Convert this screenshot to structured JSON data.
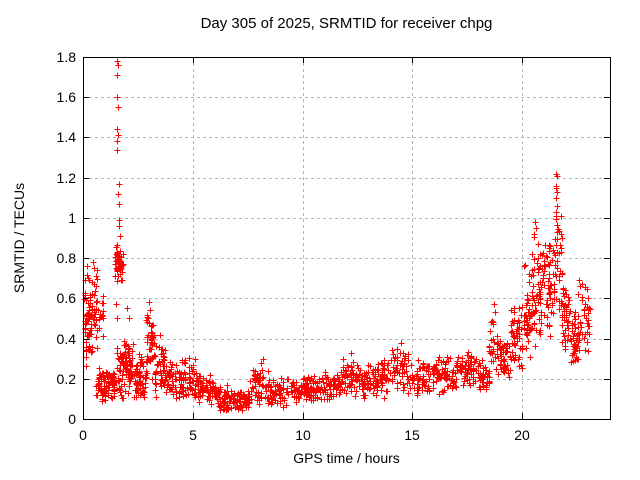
{
  "chart_data": {
    "type": "scatter",
    "title": "Day 305 of 2025, SRMTID for receiver chpg",
    "xlabel": "GPS time / hours",
    "ylabel": "SRMTID / TECUs",
    "xlim": [
      0,
      24
    ],
    "ylim": [
      0,
      1.8
    ],
    "xticks": {
      "values": [
        0,
        5,
        10,
        15,
        20
      ],
      "labels": [
        "0",
        "5",
        "10",
        "15",
        "20"
      ]
    },
    "yticks": {
      "values": [
        0,
        0.2,
        0.4,
        0.6,
        0.8,
        1.0,
        1.2,
        1.4,
        1.6,
        1.8
      ],
      "labels": [
        "0",
        "0.2",
        "0.4",
        "0.6",
        "0.8",
        "1",
        "1.2",
        "1.4",
        "1.6",
        "1.8"
      ]
    },
    "grid": true,
    "legend_position": "none",
    "marker": {
      "shape": "plus",
      "color": "#ff0000",
      "size": 7
    },
    "axis_color": "#000000",
    "grid_color": "#b5b5b5",
    "series": [
      {
        "name": "SRMTID",
        "clusters": [
          [
            0.05,
            0.35,
            0.24,
            0.77,
            55
          ],
          [
            0.35,
            0.65,
            0.28,
            0.79,
            28
          ],
          [
            0.5,
            0.95,
            0.4,
            0.64,
            20
          ],
          [
            0.6,
            1.45,
            0.08,
            0.27,
            85
          ],
          [
            1.45,
            1.82,
            0.68,
            0.88,
            45
          ],
          [
            1.5,
            1.95,
            0.05,
            0.45,
            38
          ],
          [
            1.82,
            2.3,
            0.1,
            0.42,
            50
          ],
          [
            2.3,
            2.85,
            0.08,
            0.33,
            55
          ],
          [
            2.85,
            3.25,
            0.12,
            0.55,
            42
          ],
          [
            3.25,
            3.8,
            0.1,
            0.4,
            48
          ],
          [
            3.8,
            4.5,
            0.08,
            0.3,
            52
          ],
          [
            4.5,
            5.2,
            0.08,
            0.31,
            52
          ],
          [
            5.2,
            6.0,
            0.06,
            0.23,
            58
          ],
          [
            6.0,
            6.6,
            0.04,
            0.19,
            52
          ],
          [
            6.6,
            7.6,
            0.03,
            0.15,
            68
          ],
          [
            7.6,
            8.45,
            0.06,
            0.28,
            58
          ],
          [
            8.45,
            9.3,
            0.06,
            0.21,
            52
          ],
          [
            9.3,
            10.2,
            0.07,
            0.22,
            52
          ],
          [
            10.2,
            11.0,
            0.08,
            0.24,
            52
          ],
          [
            11.0,
            11.8,
            0.06,
            0.26,
            52
          ],
          [
            11.8,
            12.5,
            0.1,
            0.33,
            48
          ],
          [
            12.5,
            13.3,
            0.1,
            0.28,
            52
          ],
          [
            13.3,
            14.0,
            0.1,
            0.31,
            48
          ],
          [
            14.0,
            14.8,
            0.12,
            0.38,
            48
          ],
          [
            14.8,
            15.6,
            0.1,
            0.3,
            48
          ],
          [
            15.6,
            16.4,
            0.12,
            0.32,
            48
          ],
          [
            16.4,
            17.2,
            0.13,
            0.33,
            52
          ],
          [
            17.2,
            18.0,
            0.14,
            0.35,
            52
          ],
          [
            18.0,
            18.5,
            0.1,
            0.3,
            38
          ],
          [
            18.5,
            18.9,
            0.16,
            0.55,
            26
          ],
          [
            18.9,
            19.5,
            0.18,
            0.44,
            42
          ],
          [
            19.5,
            20.0,
            0.22,
            0.58,
            48
          ],
          [
            20.0,
            20.5,
            0.28,
            0.78,
            52
          ],
          [
            20.5,
            21.0,
            0.34,
            0.98,
            52
          ],
          [
            21.0,
            21.5,
            0.4,
            1.02,
            48
          ],
          [
            21.5,
            21.8,
            0.5,
            1.17,
            32
          ],
          [
            21.8,
            22.2,
            0.3,
            0.72,
            42
          ],
          [
            22.2,
            22.65,
            0.23,
            0.55,
            42
          ],
          [
            22.65,
            23.1,
            0.3,
            0.7,
            28
          ]
        ],
        "outliers": [
          [
            0.45,
            0.78
          ],
          [
            0.5,
            0.75
          ],
          [
            1.55,
            1.78
          ],
          [
            1.58,
            1.76
          ],
          [
            1.55,
            1.71
          ],
          [
            1.56,
            1.6
          ],
          [
            1.6,
            1.55
          ],
          [
            1.55,
            1.44
          ],
          [
            1.58,
            1.41
          ],
          [
            1.53,
            1.38
          ],
          [
            1.57,
            1.34
          ],
          [
            1.62,
            1.17
          ],
          [
            1.6,
            1.12
          ],
          [
            1.64,
            1.07
          ],
          [
            1.66,
            0.99
          ],
          [
            1.62,
            0.96
          ],
          [
            1.68,
            0.91
          ],
          [
            1.52,
            0.57
          ],
          [
            1.56,
            0.5
          ],
          [
            2.0,
            0.55
          ],
          [
            2.1,
            0.5
          ],
          [
            3.0,
            0.58
          ],
          [
            3.05,
            0.54
          ],
          [
            2.95,
            0.5
          ],
          [
            3.1,
            0.46
          ],
          [
            3.5,
            0.42
          ],
          [
            5.1,
            0.3
          ],
          [
            8.1,
            0.28
          ],
          [
            8.2,
            0.3
          ],
          [
            12.2,
            0.33
          ],
          [
            14.5,
            0.38
          ],
          [
            14.3,
            0.35
          ],
          [
            18.7,
            0.57
          ],
          [
            18.75,
            0.53
          ],
          [
            18.65,
            0.48
          ],
          [
            20.6,
            0.98
          ],
          [
            20.65,
            0.95
          ],
          [
            20.55,
            0.92
          ],
          [
            20.7,
            0.87
          ],
          [
            20.45,
            0.82
          ],
          [
            21.55,
            1.22
          ],
          [
            21.57,
            1.21
          ],
          [
            21.53,
            1.16
          ],
          [
            21.56,
            1.15
          ],
          [
            21.58,
            1.13
          ],
          [
            21.54,
            1.1
          ],
          [
            21.6,
            1.06
          ],
          [
            21.52,
            1.03
          ],
          [
            22.6,
            0.69
          ],
          [
            22.65,
            0.66
          ],
          [
            22.55,
            0.62
          ],
          [
            23.0,
            0.6
          ],
          [
            23.05,
            0.55
          ]
        ]
      }
    ]
  }
}
